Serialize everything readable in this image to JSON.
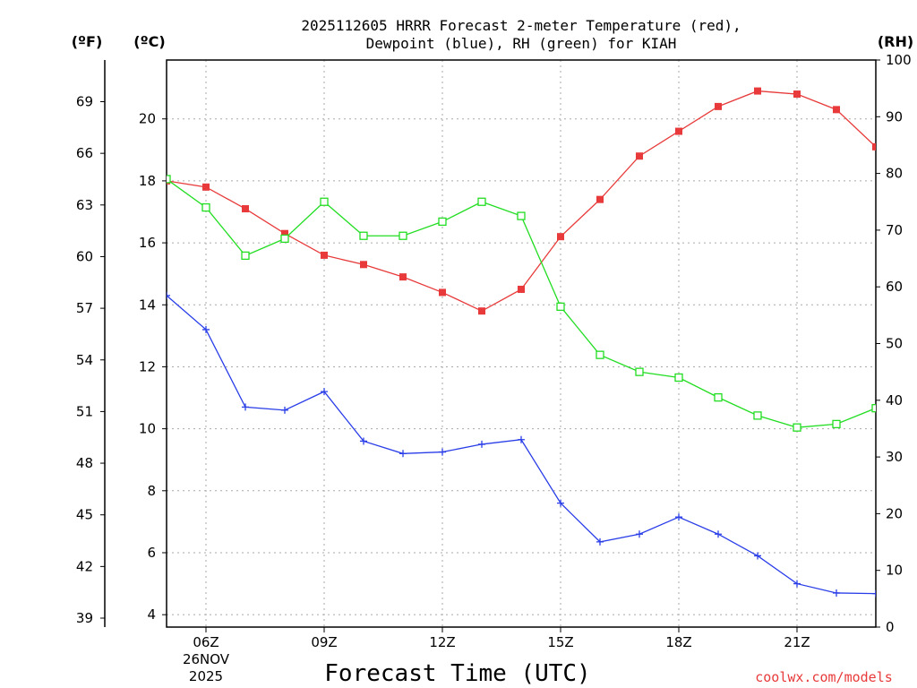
{
  "chart_data": {
    "type": "line",
    "title_line1": "2025112605 HRRR Forecast 2-meter Temperature (red),",
    "title_line2": "Dewpoint (blue), RH (green) for KIAH",
    "unit_f": "(ºF)",
    "unit_c": "(ºC)",
    "unit_rh": "(RH)",
    "xlabel": "Forecast Time (UTC)",
    "credit": "coolwx.com/models",
    "x_hours": [
      5,
      6,
      7,
      8,
      9,
      10,
      11,
      12,
      13,
      14,
      15,
      16,
      17,
      18,
      19,
      20,
      21,
      22,
      23
    ],
    "x_range": [
      5,
      23
    ],
    "x_ticks": [
      {
        "hour": 6,
        "label": "06Z",
        "sub1": "26NOV",
        "sub2": "2025"
      },
      {
        "hour": 9,
        "label": "09Z"
      },
      {
        "hour": 12,
        "label": "12Z"
      },
      {
        "hour": 15,
        "label": "15Z"
      },
      {
        "hour": 18,
        "label": "18Z"
      },
      {
        "hour": 21,
        "label": "21Z"
      }
    ],
    "y_left_c": {
      "range": [
        3.6,
        21.9
      ],
      "ticks": [
        "4",
        "6",
        "8",
        "10",
        "12",
        "14",
        "16",
        "18",
        "20"
      ]
    },
    "y_left_f": {
      "ticks": [
        "39",
        "42",
        "45",
        "48",
        "51",
        "54",
        "57",
        "60",
        "63",
        "66",
        "69"
      ]
    },
    "y_right_rh": {
      "range": [
        0,
        100
      ],
      "ticks": [
        "0",
        "10",
        "20",
        "30",
        "40",
        "50",
        "60",
        "70",
        "80",
        "90",
        "100"
      ]
    },
    "series": [
      {
        "name": "Temperature",
        "axis": "C",
        "color": "#e83a3a",
        "marker": "filled-square",
        "values": [
          18.0,
          17.8,
          17.1,
          16.3,
          15.6,
          15.3,
          14.9,
          14.4,
          13.8,
          14.5,
          16.2,
          17.4,
          18.8,
          19.6,
          20.4,
          20.9,
          20.8,
          20.3,
          19.1
        ]
      },
      {
        "name": "Dewpoint",
        "axis": "C",
        "color": "#2a3ee8",
        "marker": "plus",
        "values": [
          14.3,
          13.2,
          10.7,
          10.6,
          11.2,
          9.6,
          9.2,
          9.25,
          9.5,
          9.65,
          7.6,
          6.35,
          6.6,
          7.15,
          6.6,
          5.9,
          5.0,
          4.7,
          4.68
        ]
      },
      {
        "name": "RH",
        "axis": "RH",
        "color": "#22dd22",
        "marker": "open-square",
        "values": [
          79,
          74,
          65.5,
          68.5,
          75,
          69,
          69,
          71.5,
          75,
          72.5,
          56.5,
          48,
          45,
          44,
          40.5,
          37.3,
          35.2,
          35.8,
          38.6
        ]
      }
    ]
  }
}
